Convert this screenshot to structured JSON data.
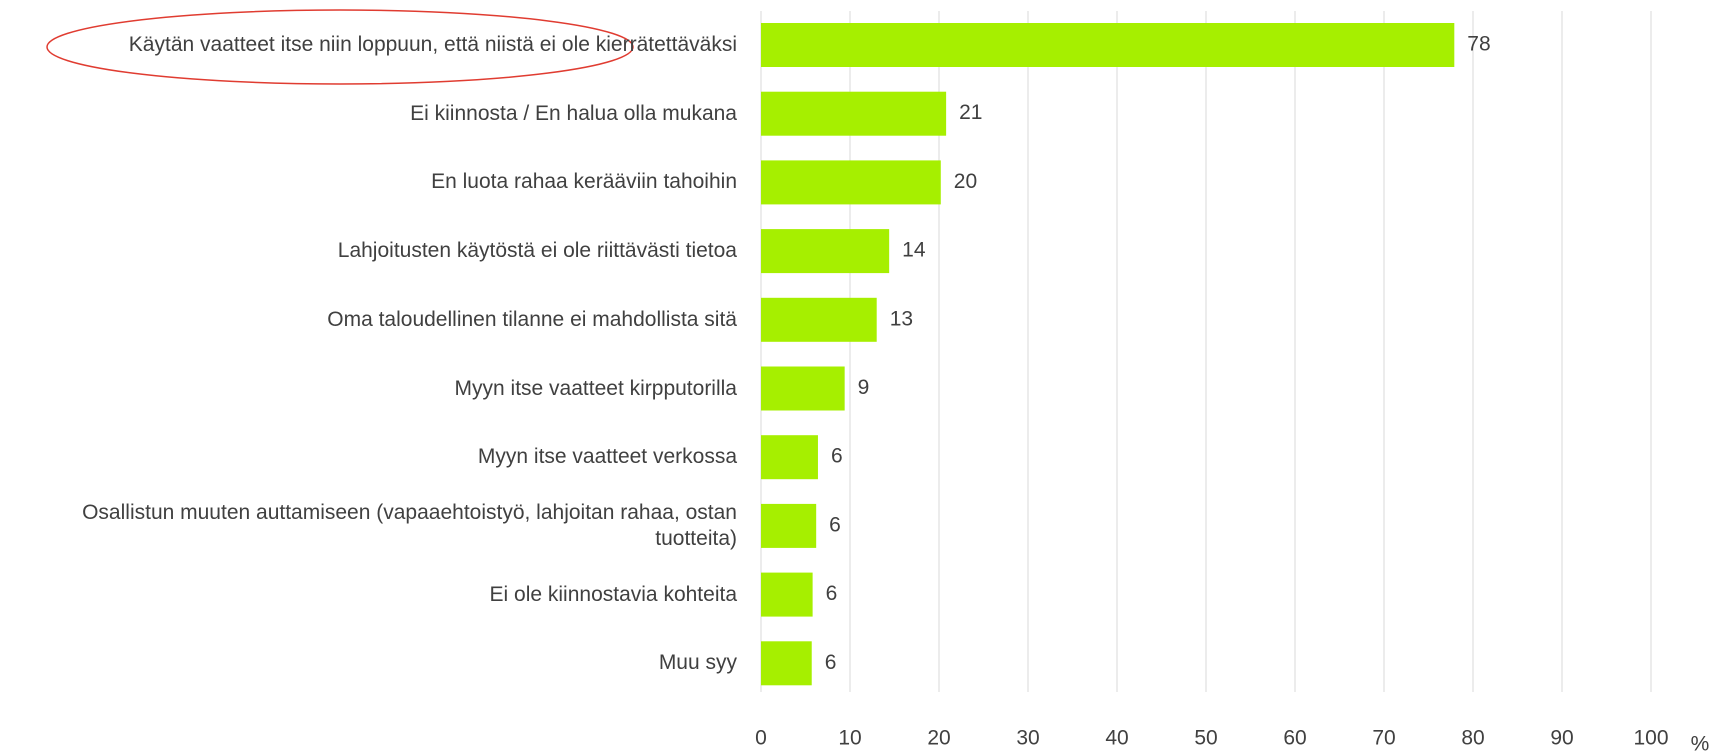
{
  "chart_data": {
    "type": "bar",
    "orientation": "horizontal",
    "categories": [
      "Käytän vaatteet itse niin loppuun, että niistä ei ole kierrätettäväksi",
      "Ei kiinnosta / En halua olla mukana",
      "En luota rahaa kerääviin tahoihin",
      "Lahjoitusten käytöstä ei ole riittävästi tietoa",
      "Oma taloudellinen tilanne ei mahdollista sitä",
      "Myyn itse vaatteet kirpputorilla",
      "Myyn itse vaatteet verkossa",
      "Osallistun muuten auttamiseen (vapaaehtoistyö, lahjoitan rahaa, ostan tuotteita)",
      "Ei ole kiinnostavia kohteita",
      "Muu syy"
    ],
    "values": [
      77.9,
      20.8,
      20.2,
      14.4,
      13.0,
      9.4,
      6.4,
      6.2,
      5.8,
      5.7
    ],
    "value_labels": [
      "78",
      "21",
      "20",
      "14",
      "13",
      "9",
      "6",
      "6",
      "6",
      "6"
    ],
    "color": "#a6ef00",
    "xlabel": "%",
    "xlim": [
      0,
      100
    ],
    "xticks": [
      0,
      10,
      20,
      30,
      40,
      50,
      60,
      70,
      80,
      90,
      100
    ],
    "grid": true
  }
}
